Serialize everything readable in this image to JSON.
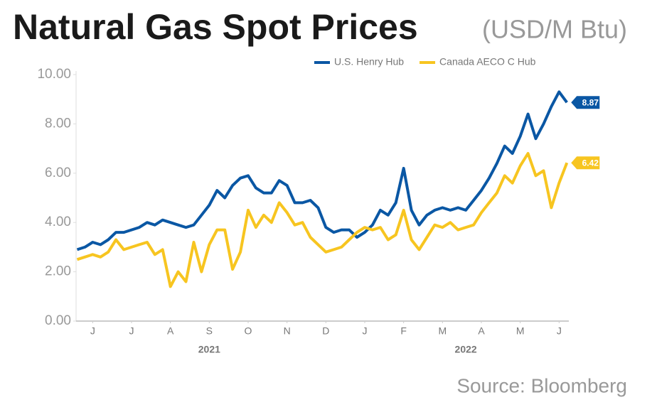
{
  "chart_data": {
    "type": "line",
    "title": "Natural Gas Spot Prices",
    "subtitle": "(USD/M Btu)",
    "source": "Source: Bloomberg",
    "legend": "top-right",
    "xlim": [
      0,
      12.75
    ],
    "xticks": [
      {
        "value": 0.5,
        "label": "J"
      },
      {
        "value": 1.5,
        "label": "J"
      },
      {
        "value": 2.5,
        "label": "A"
      },
      {
        "value": 3.5,
        "label": "S"
      },
      {
        "value": 4.5,
        "label": "O"
      },
      {
        "value": 5.5,
        "label": "N"
      },
      {
        "value": 6.5,
        "label": "D"
      },
      {
        "value": 7.5,
        "label": "J"
      },
      {
        "value": 8.5,
        "label": "F"
      },
      {
        "value": 9.5,
        "label": "M"
      },
      {
        "value": 10.5,
        "label": "A"
      },
      {
        "value": 11.5,
        "label": "M"
      },
      {
        "value": 12.5,
        "label": "J"
      }
    ],
    "year_labels": [
      {
        "value": 3.5,
        "label": "2021"
      },
      {
        "value": 10.1,
        "label": "2022"
      }
    ],
    "ylim": [
      0,
      10
    ],
    "yticks": [
      {
        "value": 0,
        "label": "0.00"
      },
      {
        "value": 2,
        "label": "2.00"
      },
      {
        "value": 4,
        "label": "4.00"
      },
      {
        "value": 6,
        "label": "6.00"
      },
      {
        "value": 8,
        "label": "8.00"
      },
      {
        "value": 10,
        "label": "10.00"
      }
    ],
    "x": [
      0.1,
      0.3,
      0.5,
      0.7,
      0.9,
      1.1,
      1.3,
      1.5,
      1.7,
      1.9,
      2.1,
      2.3,
      2.5,
      2.7,
      2.9,
      3.1,
      3.3,
      3.5,
      3.7,
      3.9,
      4.1,
      4.3,
      4.5,
      4.7,
      4.9,
      5.1,
      5.3,
      5.5,
      5.7,
      5.9,
      6.1,
      6.3,
      6.5,
      6.7,
      6.9,
      7.1,
      7.3,
      7.5,
      7.7,
      7.9,
      8.1,
      8.3,
      8.5,
      8.7,
      8.9,
      9.1,
      9.3,
      9.5,
      9.7,
      9.9,
      10.1,
      10.3,
      10.5,
      10.7,
      10.9,
      11.1,
      11.3,
      11.5,
      11.7,
      11.9,
      12.1,
      12.3,
      12.5,
      12.7
    ],
    "series": [
      {
        "name": "U.S. Henry Hub",
        "color": "#0a57a4",
        "values": [
          2.9,
          3.0,
          3.2,
          3.1,
          3.3,
          3.6,
          3.6,
          3.7,
          3.8,
          4.0,
          3.9,
          4.1,
          4.0,
          3.9,
          3.8,
          3.9,
          4.3,
          4.7,
          5.3,
          5.0,
          5.5,
          5.8,
          5.9,
          5.4,
          5.2,
          5.2,
          5.7,
          5.5,
          4.8,
          4.8,
          4.9,
          4.6,
          3.8,
          3.6,
          3.7,
          3.7,
          3.4,
          3.6,
          3.9,
          4.5,
          4.3,
          4.8,
          6.2,
          4.5,
          3.9,
          4.3,
          4.5,
          4.6,
          4.5,
          4.6,
          4.5,
          4.9,
          5.3,
          5.8,
          6.4,
          7.1,
          6.8,
          7.5,
          8.4,
          7.4,
          8.0,
          8.7,
          9.3,
          8.87
        ]
      },
      {
        "name": "Canada AECO C Hub",
        "color": "#f7c520",
        "values": [
          2.5,
          2.6,
          2.7,
          2.6,
          2.8,
          3.3,
          2.9,
          3.0,
          3.1,
          3.2,
          2.7,
          2.9,
          1.4,
          2.0,
          1.6,
          3.2,
          2.0,
          3.1,
          3.7,
          3.7,
          2.1,
          2.8,
          4.5,
          3.8,
          4.3,
          4.0,
          4.8,
          4.4,
          3.9,
          4.0,
          3.4,
          3.1,
          2.8,
          2.9,
          3.0,
          3.3,
          3.6,
          3.8,
          3.7,
          3.8,
          3.3,
          3.5,
          4.5,
          3.3,
          2.9,
          3.4,
          3.9,
          3.8,
          4.0,
          3.7,
          3.8,
          3.9,
          4.4,
          4.8,
          5.2,
          5.9,
          5.6,
          6.3,
          6.8,
          5.9,
          6.1,
          4.6,
          5.6,
          6.42
        ]
      }
    ]
  }
}
